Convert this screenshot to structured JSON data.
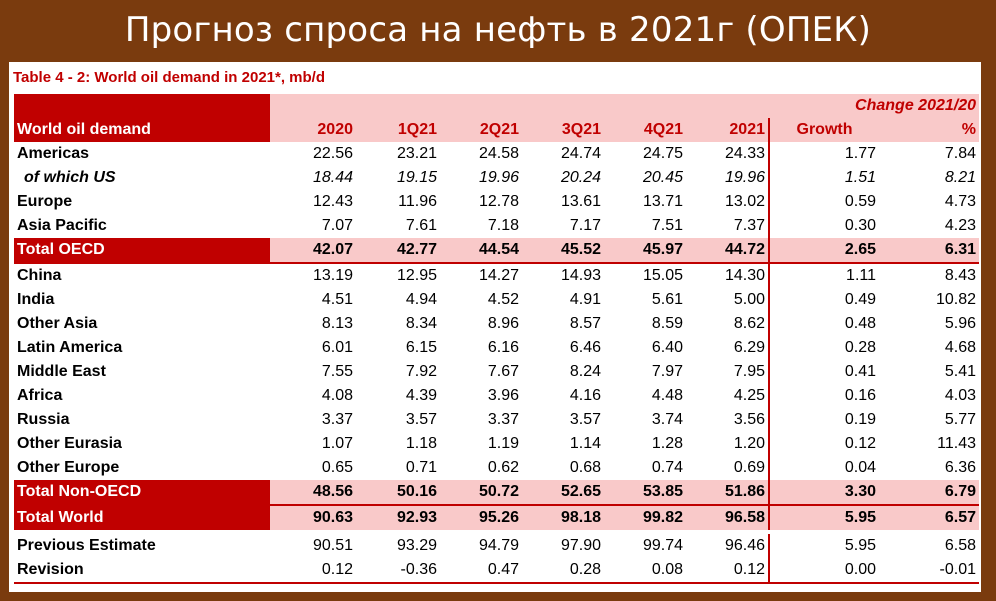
{
  "banner_title": "Прогноз спроса на нефть в 2021г (ОПЕК)",
  "table": {
    "title": "Table 4 - 2: World oil demand in 2021*, mb/d",
    "change_label": "Change 2021/20",
    "columns": [
      "World oil demand",
      "2020",
      "1Q21",
      "2Q21",
      "3Q21",
      "4Q21",
      "2021",
      "Growth",
      "%"
    ],
    "rows": [
      {
        "label": "Americas",
        "values": [
          "22.56",
          "23.21",
          "24.58",
          "24.74",
          "24.75",
          "24.33",
          "1.77",
          "7.84"
        ],
        "style": "norm"
      },
      {
        "label": "of which US",
        "values": [
          "18.44",
          "19.15",
          "19.96",
          "20.24",
          "20.45",
          "19.96",
          "1.51",
          "8.21"
        ],
        "style": "italic"
      },
      {
        "label": "Europe",
        "values": [
          "12.43",
          "11.96",
          "12.78",
          "13.61",
          "13.71",
          "13.02",
          "0.59",
          "4.73"
        ],
        "style": "norm"
      },
      {
        "label": "Asia Pacific",
        "values": [
          "7.07",
          "7.61",
          "7.18",
          "7.17",
          "7.51",
          "7.37",
          "0.30",
          "4.23"
        ],
        "style": "norm"
      },
      {
        "label": "Total OECD",
        "values": [
          "42.07",
          "42.77",
          "44.54",
          "45.52",
          "45.97",
          "44.72",
          "2.65",
          "6.31"
        ],
        "style": "total"
      },
      {
        "label": "China",
        "values": [
          "13.19",
          "12.95",
          "14.27",
          "14.93",
          "15.05",
          "14.30",
          "1.11",
          "8.43"
        ],
        "style": "norm"
      },
      {
        "label": "India",
        "values": [
          "4.51",
          "4.94",
          "4.52",
          "4.91",
          "5.61",
          "5.00",
          "0.49",
          "10.82"
        ],
        "style": "norm"
      },
      {
        "label": "Other Asia",
        "values": [
          "8.13",
          "8.34",
          "8.96",
          "8.57",
          "8.59",
          "8.62",
          "0.48",
          "5.96"
        ],
        "style": "norm"
      },
      {
        "label": "Latin America",
        "values": [
          "6.01",
          "6.15",
          "6.16",
          "6.46",
          "6.40",
          "6.29",
          "0.28",
          "4.68"
        ],
        "style": "norm"
      },
      {
        "label": "Middle East",
        "values": [
          "7.55",
          "7.92",
          "7.67",
          "8.24",
          "7.97",
          "7.95",
          "0.41",
          "5.41"
        ],
        "style": "norm"
      },
      {
        "label": "Africa",
        "values": [
          "4.08",
          "4.39",
          "3.96",
          "4.16",
          "4.48",
          "4.25",
          "0.16",
          "4.03"
        ],
        "style": "norm"
      },
      {
        "label": "Russia",
        "values": [
          "3.37",
          "3.57",
          "3.37",
          "3.57",
          "3.74",
          "3.56",
          "0.19",
          "5.77"
        ],
        "style": "norm"
      },
      {
        "label": "Other Eurasia",
        "values": [
          "1.07",
          "1.18",
          "1.19",
          "1.14",
          "1.28",
          "1.20",
          "0.12",
          "11.43"
        ],
        "style": "norm"
      },
      {
        "label": "Other Europe",
        "values": [
          "0.65",
          "0.71",
          "0.62",
          "0.68",
          "0.74",
          "0.69",
          "0.04",
          "6.36"
        ],
        "style": "norm"
      },
      {
        "label": "Total Non-OECD",
        "values": [
          "48.56",
          "50.16",
          "50.72",
          "52.65",
          "53.85",
          "51.86",
          "3.30",
          "6.79"
        ],
        "style": "total"
      },
      {
        "label": "Total World",
        "values": [
          "90.63",
          "92.93",
          "95.26",
          "98.18",
          "99.82",
          "96.58",
          "5.95",
          "6.57"
        ],
        "style": "total total-world"
      },
      {
        "label": "Previous Estimate",
        "values": [
          "90.51",
          "93.29",
          "94.79",
          "97.90",
          "99.74",
          "96.46",
          "5.95",
          "6.58"
        ],
        "style": "norm prev"
      },
      {
        "label": "Revision",
        "values": [
          "0.12",
          "-0.36",
          "0.47",
          "0.28",
          "0.08",
          "0.12",
          "0.00",
          "-0.01"
        ],
        "style": "norm last"
      }
    ]
  },
  "colors": {
    "background": "#7a3b0e",
    "accent_red": "#c00000",
    "pink": "#f9c9c9"
  }
}
